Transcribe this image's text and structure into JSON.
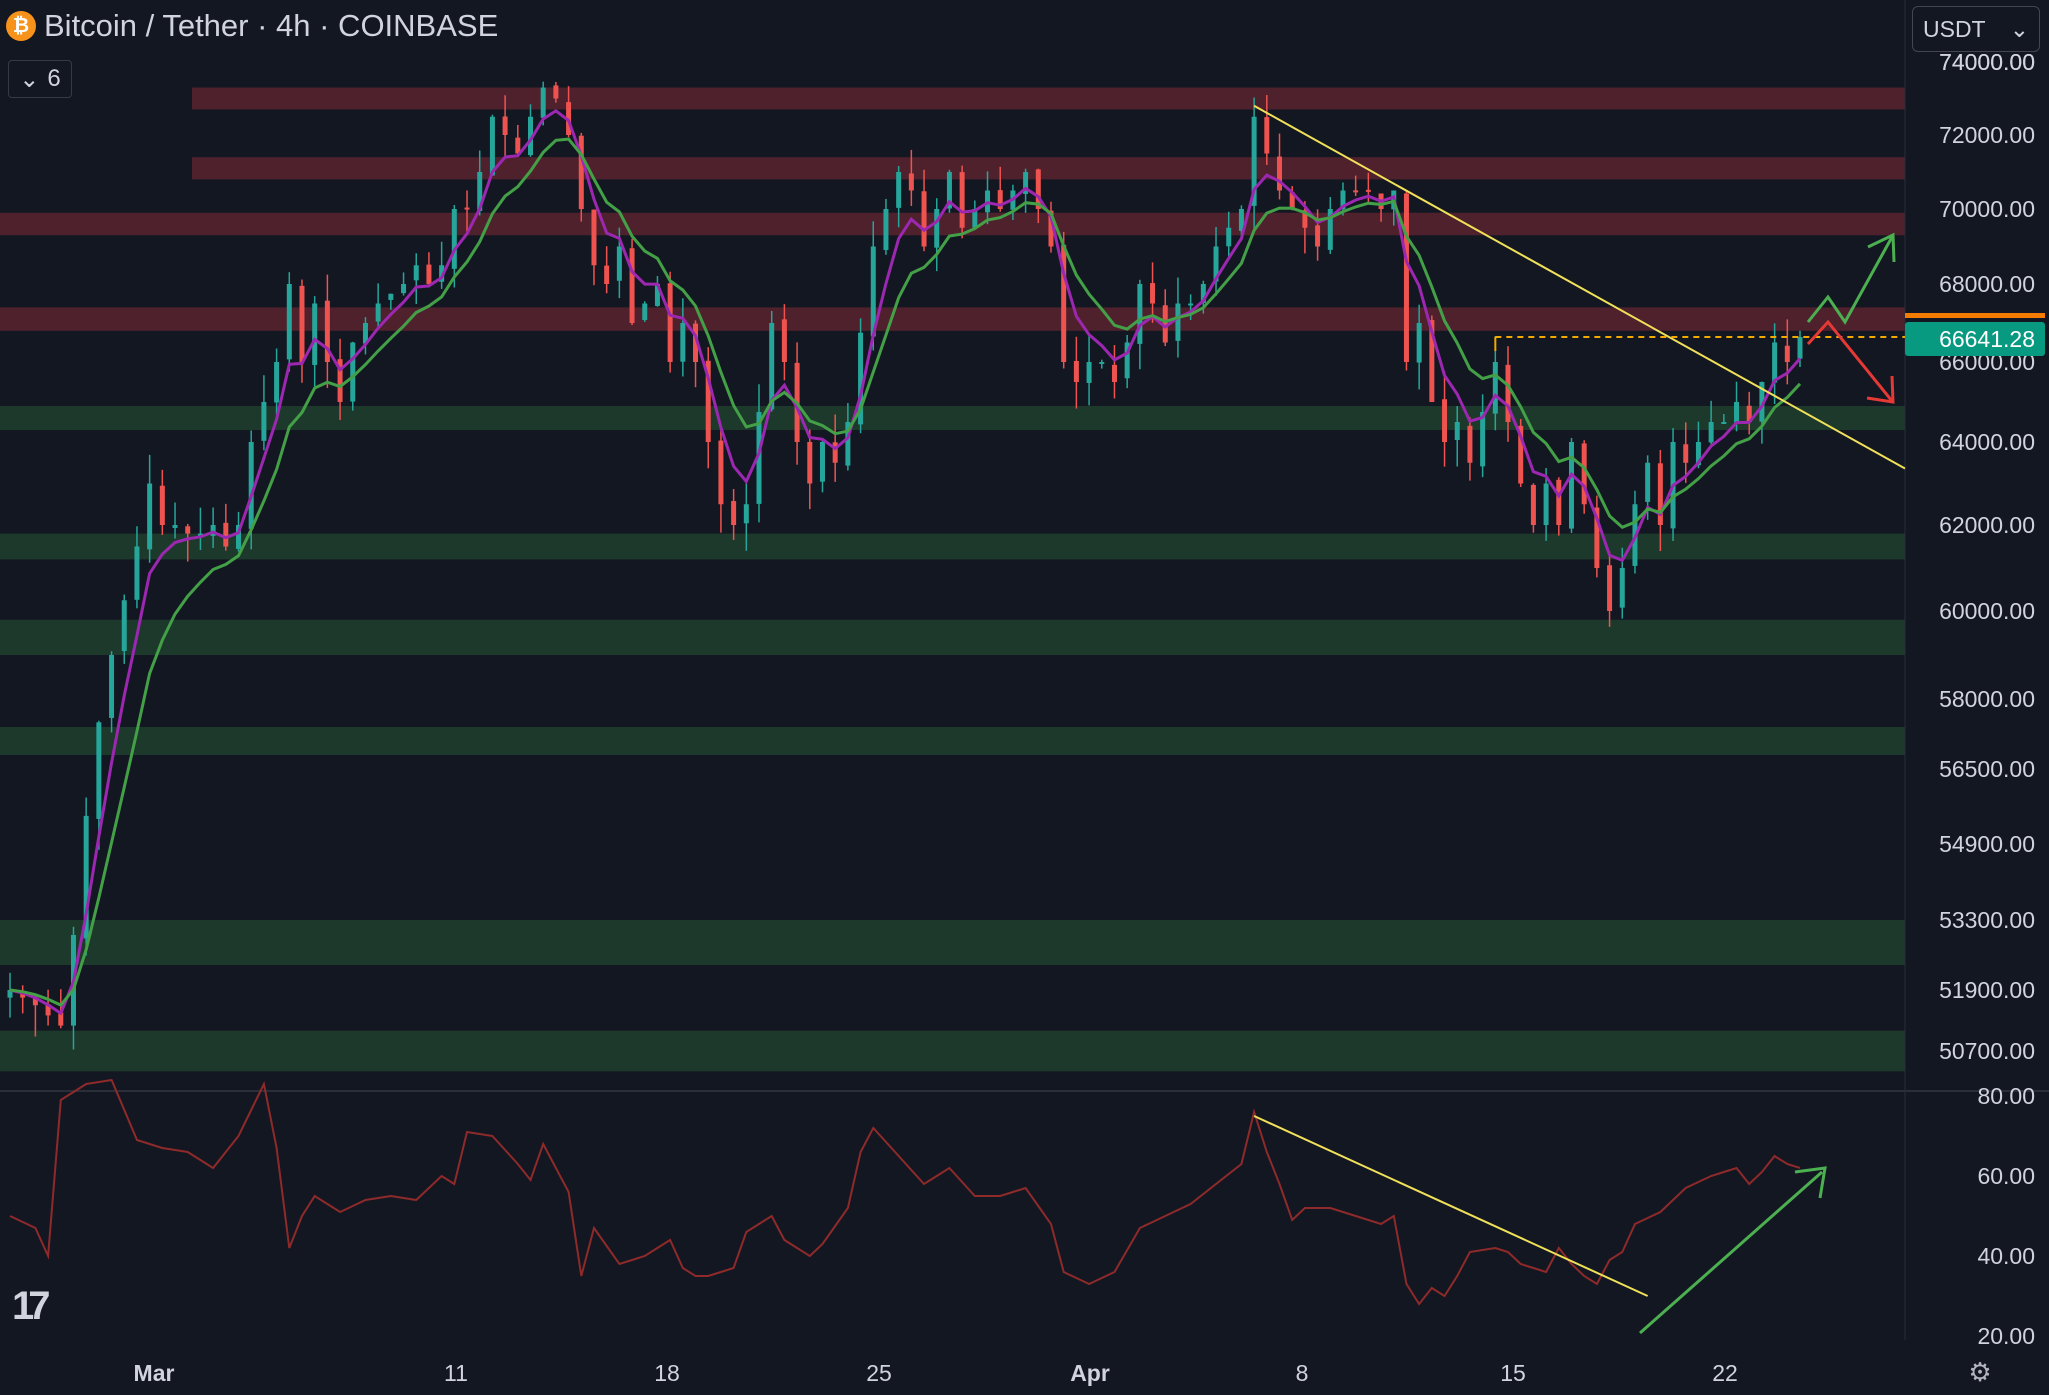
{
  "header": {
    "coin_icon": "bitcoin-icon",
    "title": "Bitcoin / Tether · 4h · COINBASE",
    "indicator_count": "6",
    "currency": "USDT"
  },
  "colors": {
    "background": "#131722",
    "up": "#26a69a",
    "down": "#ef5350",
    "resistance_zone": "#5a232e",
    "support_zone": "#1f3d2c",
    "ema_fast": "#9c27b0",
    "ema_slow": "#43a047",
    "trendline": "#f0e05a",
    "price_tag": "#089981"
  },
  "chart_data": [
    {
      "type": "candlestick",
      "title": "Bitcoin / Tether · 4h · COINBASE",
      "price_label": "66641.28",
      "y_ticks": [
        "74000.00",
        "72000.00",
        "70000.00",
        "68000.00",
        "66000.00",
        "64000.00",
        "62000.00",
        "60000.00",
        "58000.00",
        "56500.00",
        "54900.00",
        "53300.00",
        "51900.00",
        "50700.00"
      ],
      "x_ticks": [
        "Mar",
        "11",
        "18",
        "25",
        "Apr",
        "8",
        "15",
        "22"
      ],
      "ylim": [
        50000,
        74500
      ],
      "anchors": [
        [
          0,
          51900
        ],
        [
          2,
          51600
        ],
        [
          4,
          51200
        ],
        [
          5,
          53000
        ],
        [
          6,
          55500
        ],
        [
          7,
          57500
        ],
        [
          8,
          59000
        ],
        [
          10,
          61500
        ],
        [
          11,
          63000
        ],
        [
          12,
          62000
        ],
        [
          13,
          62000
        ],
        [
          14,
          61800
        ],
        [
          15,
          61800
        ],
        [
          16,
          62000
        ],
        [
          17,
          61500
        ],
        [
          18,
          62000
        ],
        [
          19,
          64000
        ],
        [
          21,
          66000
        ],
        [
          22,
          68000
        ],
        [
          23,
          66000
        ],
        [
          24,
          67500
        ],
        [
          25,
          66000
        ],
        [
          26,
          65000
        ],
        [
          27,
          66500
        ],
        [
          29,
          67500
        ],
        [
          31,
          68000
        ],
        [
          32,
          68500
        ],
        [
          33,
          68000
        ],
        [
          34,
          68500
        ],
        [
          35,
          70000
        ],
        [
          36,
          70000
        ],
        [
          37,
          71000
        ],
        [
          38,
          72500
        ],
        [
          40,
          71500
        ],
        [
          41,
          72500
        ],
        [
          42,
          73300
        ],
        [
          43,
          73000
        ],
        [
          44,
          72000
        ],
        [
          45,
          70000
        ],
        [
          46,
          68500
        ],
        [
          47,
          68000
        ],
        [
          48,
          69000
        ],
        [
          49,
          67000
        ],
        [
          51,
          68000
        ],
        [
          52,
          66000
        ],
        [
          53,
          67000
        ],
        [
          54,
          66000
        ],
        [
          55,
          64000
        ],
        [
          56,
          62500
        ],
        [
          57,
          62000
        ],
        [
          58,
          62500
        ],
        [
          60,
          67000
        ],
        [
          61,
          66000
        ],
        [
          62,
          64000
        ],
        [
          63,
          63000
        ],
        [
          64,
          64000
        ],
        [
          65,
          63500
        ],
        [
          66,
          64500
        ],
        [
          68,
          69000
        ],
        [
          69,
          70000
        ],
        [
          70,
          71000
        ],
        [
          71,
          70500
        ],
        [
          72,
          69000
        ],
        [
          73,
          70000
        ],
        [
          74,
          71000
        ],
        [
          75,
          69500
        ],
        [
          76,
          70000
        ],
        [
          77,
          70500
        ],
        [
          78,
          70000
        ],
        [
          79,
          70500
        ],
        [
          80,
          71000
        ],
        [
          81,
          70000
        ],
        [
          82,
          69000
        ],
        [
          83,
          66000
        ],
        [
          84,
          65500
        ],
        [
          85,
          66000
        ],
        [
          86,
          66000
        ],
        [
          87,
          65500
        ],
        [
          88,
          66500
        ],
        [
          89,
          68000
        ],
        [
          90,
          67500
        ],
        [
          91,
          66500
        ],
        [
          92,
          67500
        ],
        [
          93,
          67500
        ],
        [
          94,
          68000
        ],
        [
          95,
          69000
        ],
        [
          96,
          69500
        ],
        [
          97,
          70000
        ],
        [
          98,
          72500
        ],
        [
          99,
          71500
        ],
        [
          100,
          70500
        ],
        [
          101,
          70000
        ],
        [
          102,
          69500
        ],
        [
          103,
          69000
        ],
        [
          104,
          70000
        ],
        [
          105,
          70500
        ],
        [
          106,
          70500
        ],
        [
          107,
          70500
        ],
        [
          108,
          70000
        ],
        [
          109,
          70500
        ],
        [
          110,
          66000
        ],
        [
          111,
          67000
        ],
        [
          112,
          65000
        ],
        [
          113,
          64000
        ],
        [
          114,
          64500
        ],
        [
          115,
          63500
        ],
        [
          117,
          66000
        ],
        [
          118,
          64500
        ],
        [
          119,
          63000
        ],
        [
          120,
          62000
        ],
        [
          121,
          63000
        ],
        [
          122,
          62000
        ],
        [
          123,
          64000
        ],
        [
          124,
          62500
        ],
        [
          125,
          61000
        ],
        [
          126,
          60000
        ],
        [
          127,
          61000
        ],
        [
          128,
          62500
        ],
        [
          129,
          63500
        ],
        [
          130,
          62000
        ],
        [
          131,
          64000
        ],
        [
          132,
          63500
        ],
        [
          133,
          64000
        ],
        [
          134,
          64500
        ],
        [
          135,
          64500
        ],
        [
          136,
          65000
        ],
        [
          137,
          64500
        ],
        [
          138,
          65500
        ],
        [
          139,
          66500
        ],
        [
          140,
          66000
        ],
        [
          141,
          66641
        ]
      ],
      "resistance_zones": [
        [
          72700,
          73300
        ],
        [
          70800,
          71400
        ],
        [
          69300,
          69900
        ],
        [
          66800,
          67400
        ]
      ],
      "support_zones": [
        [
          64300,
          64900
        ],
        [
          61200,
          61800
        ],
        [
          59000,
          59800
        ],
        [
          56800,
          57400
        ],
        [
          52400,
          53300
        ],
        [
          50300,
          51100
        ]
      ],
      "trendline": {
        "from": [
          98,
          72800
        ],
        "to": [
          141,
          64800
        ]
      },
      "breakout_level": 66641
    },
    {
      "type": "line",
      "indicator": "oscillator",
      "y_ticks": [
        "80.00",
        "60.00",
        "40.00",
        "20.00"
      ],
      "ylim": [
        18,
        82
      ],
      "anchors": [
        [
          0,
          50
        ],
        [
          2,
          47
        ],
        [
          3,
          40
        ],
        [
          4,
          79
        ],
        [
          6,
          83
        ],
        [
          8,
          84
        ],
        [
          10,
          69
        ],
        [
          12,
          67
        ],
        [
          14,
          66
        ],
        [
          16,
          62
        ],
        [
          18,
          70
        ],
        [
          20,
          83
        ],
        [
          21,
          67
        ],
        [
          22,
          42
        ],
        [
          23,
          50
        ],
        [
          24,
          55
        ],
        [
          26,
          51
        ],
        [
          28,
          54
        ],
        [
          30,
          55
        ],
        [
          32,
          54
        ],
        [
          34,
          60
        ],
        [
          35,
          58
        ],
        [
          36,
          71
        ],
        [
          38,
          70
        ],
        [
          40,
          63
        ],
        [
          41,
          59
        ],
        [
          42,
          68
        ],
        [
          44,
          56
        ],
        [
          45,
          35
        ],
        [
          46,
          47
        ],
        [
          48,
          38
        ],
        [
          50,
          40
        ],
        [
          52,
          44
        ],
        [
          53,
          37
        ],
        [
          54,
          35
        ],
        [
          55,
          35
        ],
        [
          57,
          37
        ],
        [
          58,
          46
        ],
        [
          60,
          50
        ],
        [
          61,
          44
        ],
        [
          63,
          40
        ],
        [
          64,
          43
        ],
        [
          66,
          52
        ],
        [
          67,
          66
        ],
        [
          68,
          72
        ],
        [
          70,
          65
        ],
        [
          72,
          58
        ],
        [
          74,
          62
        ],
        [
          76,
          55
        ],
        [
          78,
          55
        ],
        [
          80,
          57
        ],
        [
          82,
          48
        ],
        [
          83,
          36
        ],
        [
          85,
          33
        ],
        [
          87,
          36
        ],
        [
          89,
          47
        ],
        [
          91,
          50
        ],
        [
          93,
          53
        ],
        [
          95,
          58
        ],
        [
          97,
          63
        ],
        [
          98,
          76
        ],
        [
          99,
          66
        ],
        [
          100,
          58
        ],
        [
          101,
          49
        ],
        [
          102,
          52
        ],
        [
          104,
          52
        ],
        [
          106,
          50
        ],
        [
          108,
          48
        ],
        [
          109,
          50
        ],
        [
          110,
          33
        ],
        [
          111,
          28
        ],
        [
          112,
          32
        ],
        [
          113,
          30
        ],
        [
          114,
          35
        ],
        [
          115,
          41
        ],
        [
          117,
          42
        ],
        [
          118,
          41
        ],
        [
          119,
          38
        ],
        [
          120,
          37
        ],
        [
          121,
          36
        ],
        [
          122,
          42
        ],
        [
          123,
          38
        ],
        [
          124,
          35
        ],
        [
          125,
          33
        ],
        [
          126,
          39
        ],
        [
          127,
          41
        ],
        [
          128,
          48
        ],
        [
          130,
          51
        ],
        [
          132,
          57
        ],
        [
          134,
          60
        ],
        [
          136,
          62
        ],
        [
          137,
          58
        ],
        [
          138,
          61
        ],
        [
          139,
          65
        ],
        [
          140,
          63
        ],
        [
          141,
          62
        ]
      ],
      "trendline": {
        "from": [
          98,
          75
        ],
        "to": [
          129,
          30
        ]
      }
    }
  ]
}
